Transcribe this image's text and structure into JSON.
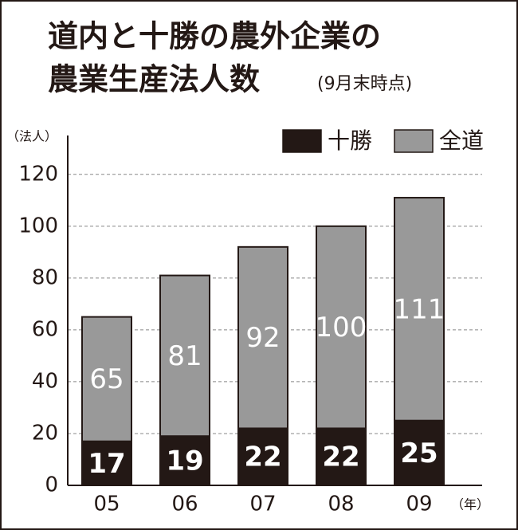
{
  "chart_data": {
    "type": "bar",
    "title": "道内と十勝の農外企業の",
    "title2": "農業生産法人数",
    "subtitle": "(9月末時点)",
    "y_label": "（法人）",
    "x_label": "（年）",
    "categories": [
      "05",
      "06",
      "07",
      "08",
      "09"
    ],
    "series": [
      {
        "name": "全道",
        "color": "#999999",
        "values": [
          65,
          81,
          92,
          100,
          111
        ]
      },
      {
        "name": "十勝",
        "color": "#231815",
        "values": [
          17,
          19,
          22,
          22,
          25
        ]
      }
    ],
    "ylim": [
      0,
      135
    ],
    "yticks": [
      0,
      20,
      40,
      60,
      80,
      100,
      120
    ],
    "grid": true
  }
}
